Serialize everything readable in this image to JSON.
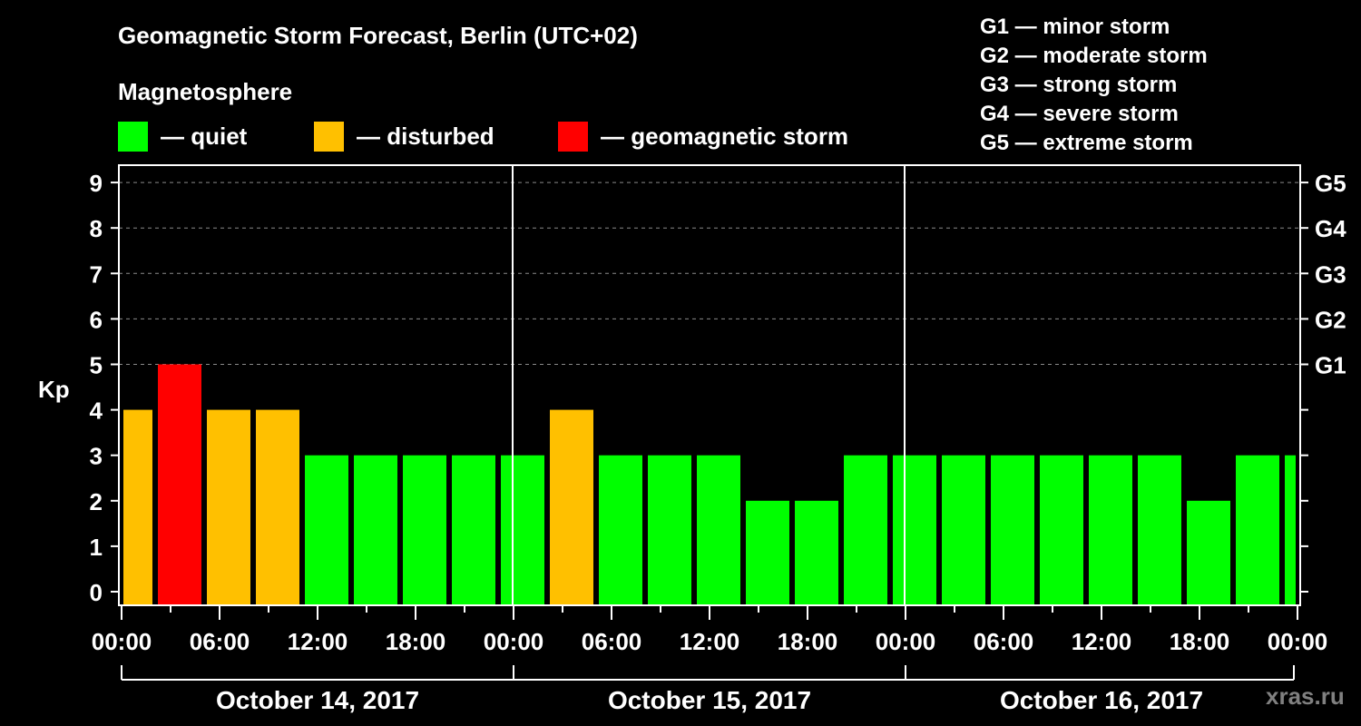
{
  "title": "Geomagnetic Storm Forecast, Berlin (UTC+02)",
  "subtitle": "Magnetosphere",
  "legend": [
    {
      "label": "— quiet",
      "color": "#00ff00"
    },
    {
      "label": "— disturbed",
      "color": "#ffc000"
    },
    {
      "label": "— geomagnetic storm",
      "color": "#ff0000"
    }
  ],
  "g_legend": [
    "G1 — minor storm",
    "G2 — moderate storm",
    "G3 — strong storm",
    "G4 — severe storm",
    "G5 — extreme storm"
  ],
  "watermark": "xras.ru",
  "chart_data": {
    "type": "bar",
    "title": "Geomagnetic Storm Forecast, Berlin (UTC+02)",
    "ylabel": "Kp",
    "ylim": [
      0,
      9
    ],
    "yticks": [
      0,
      1,
      2,
      3,
      4,
      5,
      6,
      7,
      8,
      9
    ],
    "right_axis_labels": [
      {
        "kp": 5,
        "label": "G1"
      },
      {
        "kp": 6,
        "label": "G2"
      },
      {
        "kp": 7,
        "label": "G3"
      },
      {
        "kp": 8,
        "label": "G4"
      },
      {
        "kp": 9,
        "label": "G5"
      }
    ],
    "grid": "dashed horizontal at Kp 5-9",
    "xtick_labels": [
      "00:00",
      "06:00",
      "12:00",
      "18:00",
      "00:00",
      "06:00",
      "12:00",
      "18:00",
      "00:00",
      "06:00",
      "12:00",
      "18:00",
      "00:00"
    ],
    "days": [
      "October 14, 2017",
      "October 15, 2017",
      "October 16, 2017"
    ],
    "interval_hours": 3,
    "values": [
      4,
      5,
      4,
      4,
      3,
      3,
      3,
      3,
      3,
      4,
      3,
      3,
      3,
      2,
      2,
      3,
      3,
      3,
      3,
      3,
      3,
      3,
      2,
      3,
      3
    ],
    "colors": {
      "quiet": "#00ff00",
      "disturbed": "#ffc000",
      "storm": "#ff0000"
    },
    "thresholds": {
      "disturbed": 4,
      "storm": 5
    }
  }
}
